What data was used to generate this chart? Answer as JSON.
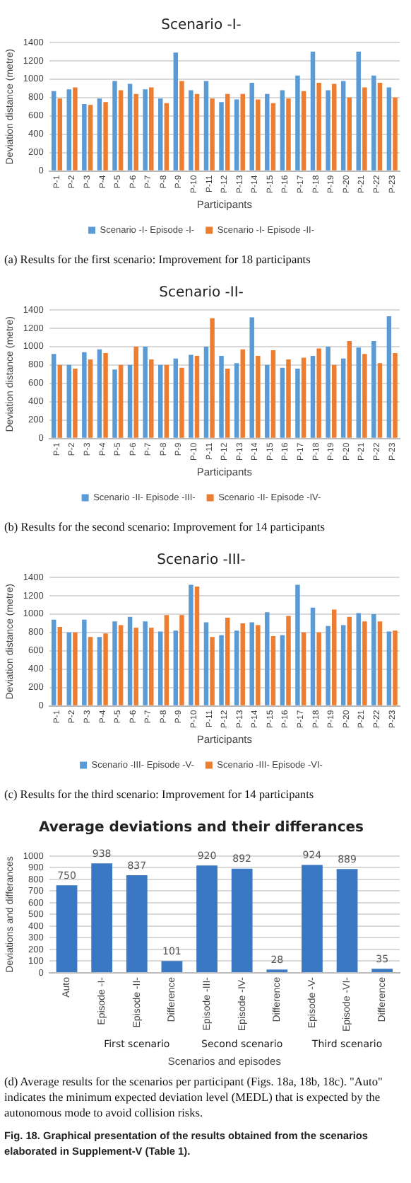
{
  "chart_data": [
    {
      "type": "bar",
      "title": "Scenario -I-",
      "xlabel": "Participants",
      "ylabel": "Deviation distance (metre)",
      "categories": [
        "P-1",
        "P-2",
        "P-3",
        "P-4",
        "P-5",
        "P-6",
        "P-7",
        "P-8",
        "P-9",
        "P-10",
        "P-11",
        "P-12",
        "P-13",
        "P-14",
        "P-15",
        "P-16",
        "P-17",
        "P-18",
        "P-19",
        "P-20",
        "P-21",
        "P-22",
        "P-23"
      ],
      "series": [
        {
          "name": "Scenario -I- Episode -I-",
          "color": "#5b9bd5",
          "values": [
            870,
            890,
            730,
            790,
            980,
            950,
            890,
            790,
            1290,
            880,
            980,
            750,
            780,
            960,
            840,
            880,
            1040,
            1300,
            880,
            980,
            1300,
            1040,
            910
          ]
        },
        {
          "name": "Scenario -I- Episode -II-",
          "color": "#ed7d31",
          "values": [
            790,
            910,
            720,
            750,
            880,
            840,
            910,
            740,
            980,
            840,
            790,
            840,
            840,
            780,
            740,
            790,
            870,
            960,
            950,
            800,
            910,
            960,
            800
          ]
        }
      ],
      "ylim": [
        0,
        1400
      ],
      "yticks": [
        0,
        200,
        400,
        600,
        800,
        1000,
        1200,
        1400
      ],
      "grid": "y",
      "legend": "bottom",
      "annotations": [
        "(a) Results for the first scenario: Improvement for 18 participants"
      ]
    },
    {
      "type": "bar",
      "title": "Scenario -II-",
      "xlabel": "Participants",
      "ylabel": "Deviation distance (metre)",
      "categories": [
        "P-1",
        "P-2",
        "P-3",
        "P-4",
        "P-5",
        "P-6",
        "P-7",
        "P-8",
        "P-9",
        "P-10",
        "P-11",
        "P-12",
        "P-13",
        "P-14",
        "P-15",
        "P-16",
        "P-17",
        "P-18",
        "P-19",
        "P-20",
        "P-21",
        "P-22",
        "P-23"
      ],
      "series": [
        {
          "name": "Scenario -II- Episode -III-",
          "color": "#5b9bd5",
          "values": [
            920,
            800,
            940,
            970,
            750,
            800,
            1000,
            800,
            870,
            910,
            1000,
            900,
            820,
            1320,
            800,
            770,
            760,
            900,
            1000,
            870,
            990,
            1060,
            1330
          ]
        },
        {
          "name": "Scenario -II- Episode -IV-",
          "color": "#ed7d31",
          "values": [
            800,
            760,
            860,
            930,
            800,
            1000,
            860,
            800,
            770,
            900,
            1310,
            760,
            970,
            900,
            960,
            860,
            880,
            980,
            800,
            1060,
            920,
            820,
            930
          ]
        }
      ],
      "ylim": [
        0,
        1400
      ],
      "yticks": [
        0,
        200,
        400,
        600,
        800,
        1000,
        1200,
        1400
      ],
      "grid": "y",
      "legend": "bottom",
      "annotations": [
        "(b) Results for the second scenario: Improvement for 14 participants"
      ]
    },
    {
      "type": "bar",
      "title": "Scenario -III-",
      "xlabel": "Participants",
      "ylabel": "Deviation distance (metre)",
      "categories": [
        "P-1",
        "P-2",
        "P-3",
        "P-4",
        "P-5",
        "P-6",
        "P-7",
        "P-8",
        "P-9",
        "P-10",
        "P-11",
        "P-12",
        "P-13",
        "P-14",
        "P-15",
        "P-16",
        "P-17",
        "P-18",
        "P-19",
        "P-20",
        "P-21",
        "P-22",
        "P-23"
      ],
      "series": [
        {
          "name": "Scenario -III- Episode -V-",
          "color": "#5b9bd5",
          "values": [
            940,
            800,
            940,
            750,
            920,
            970,
            920,
            810,
            820,
            1320,
            910,
            770,
            820,
            910,
            1020,
            770,
            1320,
            1070,
            870,
            880,
            1010,
            1000,
            810
          ]
        },
        {
          "name": "Scenario -III- Episode -VI-",
          "color": "#ed7d31",
          "values": [
            860,
            800,
            750,
            790,
            880,
            850,
            850,
            990,
            990,
            1300,
            750,
            960,
            900,
            880,
            760,
            980,
            800,
            800,
            1050,
            970,
            920,
            920,
            820
          ]
        }
      ],
      "ylim": [
        0,
        1400
      ],
      "yticks": [
        0,
        200,
        400,
        600,
        800,
        1000,
        1200,
        1400
      ],
      "grid": "y",
      "legend": "bottom",
      "annotations": [
        "(c) Results for the third scenario: Improvement for 14 participants"
      ]
    },
    {
      "type": "bar",
      "title": "Average deviations and their differances",
      "xlabel": "Scenarios and episodes",
      "ylabel": "Deviations and differances",
      "categories": [
        "Auto",
        "Episode -I-",
        "Episode -II-",
        "Difference",
        "Episode -III-",
        "Episode -IV-",
        "Difference",
        "Episode -V-",
        "Episode -VI-",
        "Difference"
      ],
      "series": [
        {
          "color": "#3a78c3",
          "values": [
            750,
            938,
            837,
            101,
            920,
            892,
            28,
            924,
            889,
            35
          ]
        }
      ],
      "ylim": [
        0,
        1000
      ],
      "yticks": [
        0,
        100,
        200,
        300,
        400,
        500,
        600,
        700,
        800,
        900,
        1000
      ],
      "grid": "y",
      "data_labels": true,
      "annotations": [
        "First scenario",
        "Second scenario",
        "Third scenario",
        "(d) Average results for the scenarios per participant (Figs. 18a, 18b, 18c). \"Auto\" indicates the minimum expected deviation level (MEDL) that is expected by the autonomous mode to avoid collision risks.",
        "Fig. 18. Graphical presentation of the results obtained from the scenarios elaborated in Supplement-V (Table 1)."
      ]
    }
  ]
}
